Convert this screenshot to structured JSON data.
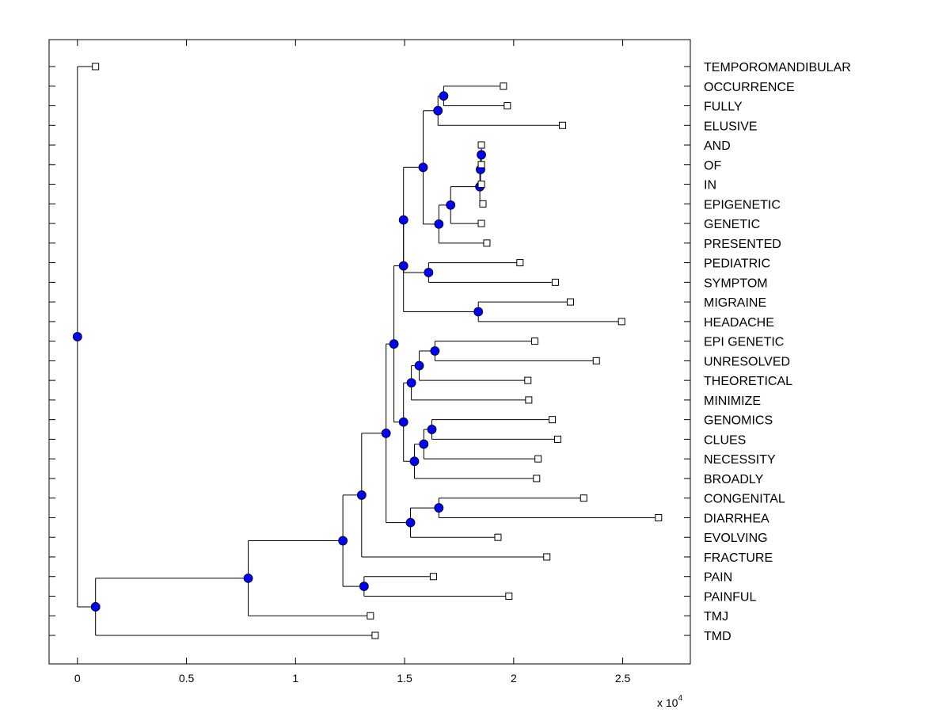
{
  "chart_data": {
    "type": "dendrogram",
    "xlim": [
      -0.13,
      2.81
    ],
    "x_ticks": [
      0,
      0.5,
      1,
      1.5,
      2,
      2.5
    ],
    "x_tick_labels": [
      "0",
      "0.5",
      "1",
      "1.5",
      "2",
      "2.5"
    ],
    "x_exponent_label": "x 10",
    "x_exponent": "4",
    "grid": false,
    "node_color": "#0000ff",
    "tree": {
      "h": 0,
      "c": [
        {
          "label": "TEMPOROMANDIBULAR",
          "h": 0.083
        },
        {
          "h": 0.083,
          "c": [
            {
              "h": 0.783,
              "c": [
                {
                  "h": 1.217,
                  "c": [
                    {
                      "h": 1.303,
                      "c": [
                        {
                          "h": 1.415,
                          "c": [
                            {
                              "h": 1.451,
                              "c": [
                                {
                                  "h": 1.495,
                                  "c": [
                                    {
                                      "h": 1.495,
                                      "c": [
                                        {
                                          "h": 1.585,
                                          "c": [
                                            {
                                              "h": 1.653,
                                              "c": [
                                                {
                                                  "h": 1.679,
                                                  "c": [
                                                    {
                                                      "label": "OCCURRENCE",
                                                      "h": 1.953
                                                    },
                                                    {
                                                      "label": "FULLY",
                                                      "h": 1.971
                                                    }
                                                  ]
                                                },
                                                {
                                                  "label": "ELUSIVE",
                                                  "h": 2.224
                                                }
                                              ]
                                            },
                                            {
                                              "h": 1.657,
                                              "c": [
                                                {
                                                  "h": 1.711,
                                                  "c": [
                                                    {
                                                      "h": 1.845,
                                                      "c": [
                                                        {
                                                          "h": 1.848,
                                                          "c": [
                                                            {
                                                              "h": 1.852,
                                                              "c": [
                                                                {
                                                                  "label": "AND",
                                                                  "h": 1.852
                                                                },
                                                                {
                                                                  "label": "OF",
                                                                  "h": 1.852
                                                                }
                                                              ]
                                                            },
                                                            {
                                                              "label": "IN",
                                                              "h": 1.852
                                                            }
                                                          ]
                                                        },
                                                        {
                                                          "label": "EPIGENETIC",
                                                          "h": 1.859
                                                        }
                                                      ]
                                                    },
                                                    {
                                                      "label": "GENETIC",
                                                      "h": 1.852
                                                    }
                                                  ]
                                                },
                                                {
                                                  "label": "PRESENTED",
                                                  "h": 1.877
                                                }
                                              ]
                                            }
                                          ]
                                        },
                                        {
                                          "h": 1.61,
                                          "c": [
                                            {
                                              "label": "PEDIATRIC",
                                              "h": 2.029
                                            },
                                            {
                                              "label": "SYMPTOM",
                                              "h": 2.191
                                            }
                                          ]
                                        }
                                      ]
                                    },
                                    {
                                      "h": 1.838,
                                      "c": [
                                        {
                                          "label": "MIGRAINE",
                                          "h": 2.26
                                        },
                                        {
                                          "label": "HEADACHE",
                                          "h": 2.495
                                        }
                                      ]
                                    }
                                  ]
                                },
                                {
                                  "h": 1.495,
                                  "c": [
                                    {
                                      "h": 1.531,
                                      "c": [
                                        {
                                          "h": 1.567,
                                          "c": [
                                            {
                                              "h": 1.639,
                                              "c": [
                                                {
                                                  "label": "EPI GENETIC",
                                                  "h": 2.097
                                                },
                                                {
                                                  "label": "UNRESOLVED",
                                                  "h": 2.379
                                                }
                                              ]
                                            },
                                            {
                                              "label": "THEORETICAL",
                                              "h": 2.065
                                            }
                                          ]
                                        },
                                        {
                                          "label": "MINIMIZE",
                                          "h": 2.069
                                        }
                                      ]
                                    },
                                    {
                                      "h": 1.545,
                                      "c": [
                                        {
                                          "h": 1.588,
                                          "c": [
                                            {
                                              "h": 1.625,
                                              "c": [
                                                {
                                                  "label": "GENOMICS",
                                                  "h": 2.177
                                                },
                                                {
                                                  "label": "CLUES",
                                                  "h": 2.202
                                                }
                                              ]
                                            },
                                            {
                                              "label": "NECESSITY",
                                              "h": 2.112
                                            }
                                          ]
                                        },
                                        {
                                          "label": "BROADLY",
                                          "h": 2.105
                                        }
                                      ]
                                    }
                                  ]
                                }
                              ]
                            },
                            {
                              "h": 1.527,
                              "c": [
                                {
                                  "h": 1.657,
                                  "c": [
                                    {
                                      "label": "CONGENITAL",
                                      "h": 2.321
                                    },
                                    {
                                      "label": "DIARRHEA",
                                      "h": 2.664
                                    }
                                  ]
                                },
                                {
                                  "label": "EVOLVING",
                                  "h": 1.928
                                }
                              ]
                            }
                          ]
                        },
                        {
                          "label": "FRACTURE",
                          "h": 2.152
                        }
                      ]
                    },
                    {
                      "h": 1.314,
                      "c": [
                        {
                          "label": "PAIN",
                          "h": 1.632
                        },
                        {
                          "label": "PAINFUL",
                          "h": 1.978
                        }
                      ]
                    }
                  ]
                },
                {
                  "label": "TMJ",
                  "h": 1.343
                }
              ]
            },
            {
              "label": "TMD",
              "h": 1.365
            }
          ]
        }
      ]
    }
  }
}
